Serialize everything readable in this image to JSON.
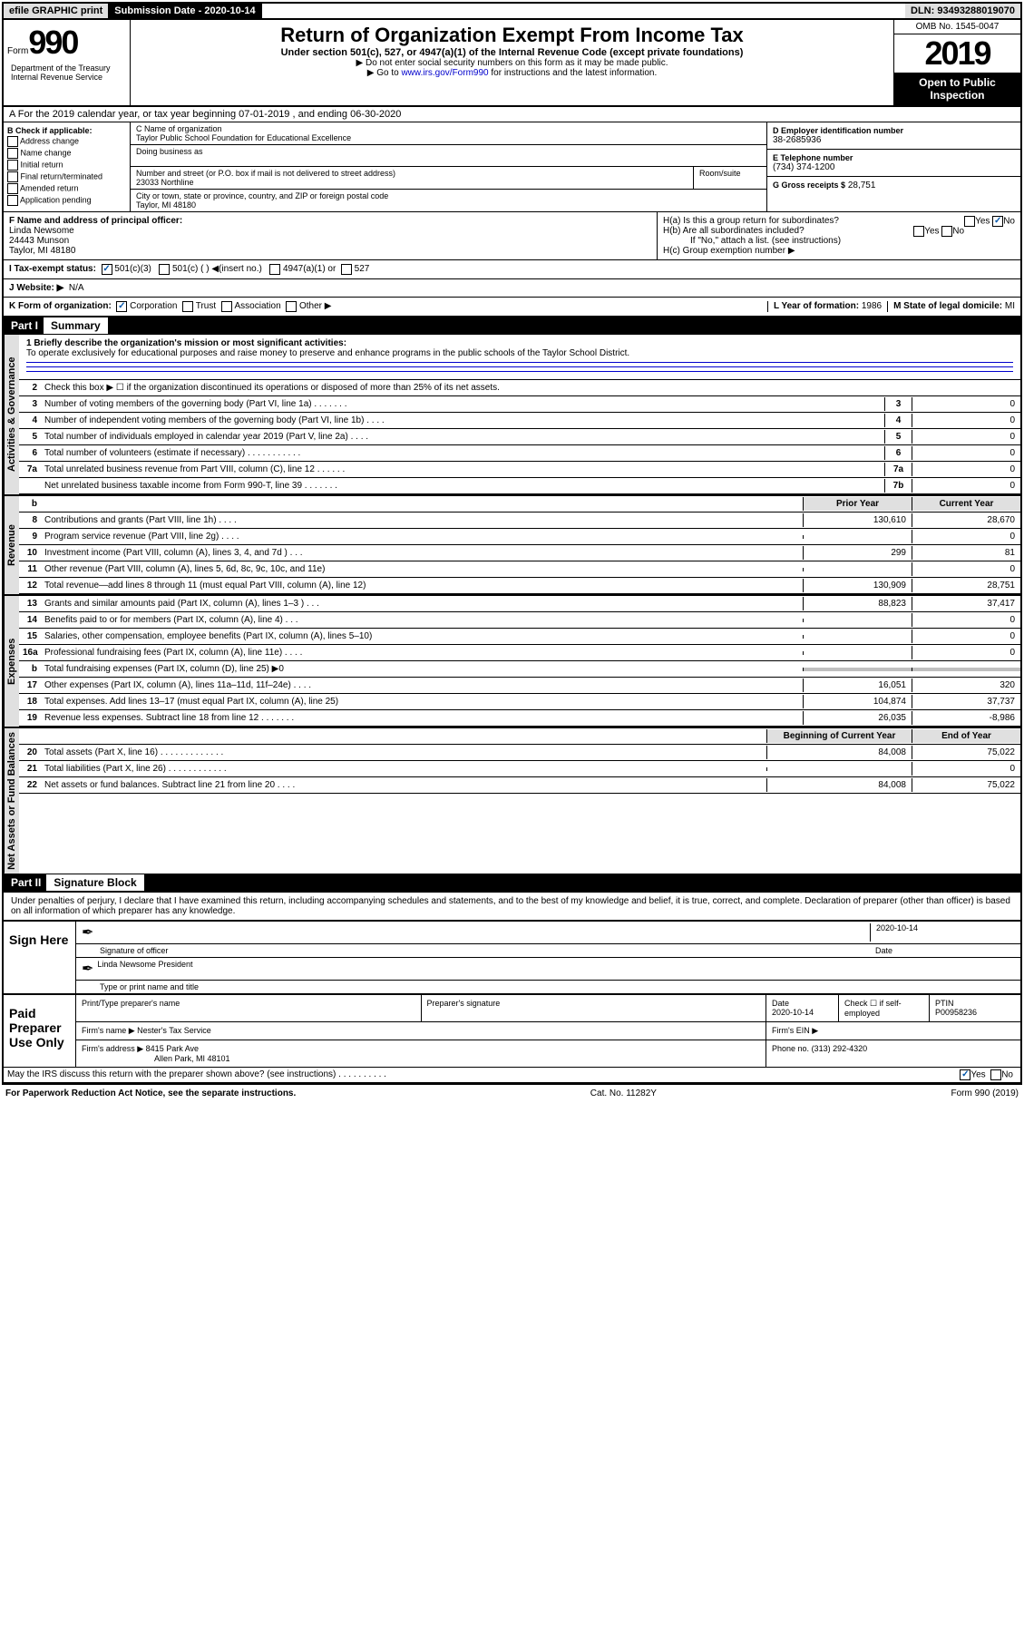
{
  "top_bar": {
    "efile": "efile GRAPHIC print",
    "sub_label": "Submission Date",
    "sub_date": "2020-10-14",
    "dln": "DLN: 93493288019070"
  },
  "header": {
    "form_word": "Form",
    "form_num": "990",
    "title": "Return of Organization Exempt From Income Tax",
    "subtitle": "Under section 501(c), 527, or 4947(a)(1) of the Internal Revenue Code (except private foundations)",
    "note1": "▶ Do not enter social security numbers on this form as it may be made public.",
    "note2_pre": "▶ Go to ",
    "note2_link": "www.irs.gov/Form990",
    "note2_post": " for instructions and the latest information.",
    "omb": "OMB No. 1545-0047",
    "year": "2019",
    "open_public": "Open to Public Inspection",
    "dept": "Department of the Treasury Internal Revenue Service"
  },
  "section_a": "A For the 2019 calendar year, or tax year beginning 07-01-2019    , and ending 06-30-2020",
  "section_b": {
    "label": "B Check if applicable:",
    "items": [
      "Address change",
      "Name change",
      "Initial return",
      "Final return/terminated",
      "Amended return",
      "Application pending"
    ]
  },
  "section_c": {
    "label": "C Name of organization",
    "name": "Taylor Public School Foundation for Educational Excellence",
    "dba_label": "Doing business as",
    "addr_label": "Number and street (or P.O. box if mail is not delivered to street address)",
    "room_label": "Room/suite",
    "addr": "23033 Northline",
    "city_label": "City or town, state or province, country, and ZIP or foreign postal code",
    "city": "Taylor, MI  48180"
  },
  "section_d": {
    "label": "D Employer identification number",
    "value": "38-2685936"
  },
  "section_e": {
    "label": "E Telephone number",
    "value": "(734) 374-1200"
  },
  "section_g": {
    "label": "G Gross receipts $",
    "value": "28,751"
  },
  "section_f": {
    "label": "F  Name and address of principal officer:",
    "name": "Linda Newsome",
    "addr": "24443 Munson",
    "city": "Taylor, MI  48180"
  },
  "section_h": {
    "a_label": "H(a)  Is this a group return for subordinates?",
    "b_label": "H(b)  Are all subordinates included?",
    "b_note": "If \"No,\" attach a list. (see instructions)",
    "c_label": "H(c)  Group exemption number ▶",
    "yes": "Yes",
    "no": "No"
  },
  "section_i": {
    "label": "I  Tax-exempt status:",
    "opts": [
      "501(c)(3)",
      "501(c) (  ) ◀(insert no.)",
      "4947(a)(1) or",
      "527"
    ]
  },
  "section_j": {
    "label": "J  Website: ▶",
    "value": "N/A"
  },
  "section_k": {
    "label": "K Form of organization:",
    "opts": [
      "Corporation",
      "Trust",
      "Association",
      "Other ▶"
    ]
  },
  "section_l": {
    "label": "L Year of formation:",
    "value": "1986"
  },
  "section_m": {
    "label": "M State of legal domicile:",
    "value": "MI"
  },
  "part1": {
    "header": "Part I",
    "title": "Summary",
    "mission_label": "1  Briefly describe the organization's mission or most significant activities:",
    "mission": "To operate exclusively for educational purposes and raise money to preserve and enhance programs in the public schools of the Taylor School District.",
    "line2": "Check this box ▶ ☐ if the organization discontinued its operations or disposed of more than 25% of its net assets.",
    "prior_year": "Prior Year",
    "current_year": "Current Year",
    "beg_year": "Beginning of Current Year",
    "end_year": "End of Year"
  },
  "lines_gov": [
    {
      "num": "3",
      "desc": "Number of voting members of the governing body (Part VI, line 1a)  .    .    .    .    .    .    .",
      "box": "3",
      "val": "0"
    },
    {
      "num": "4",
      "desc": "Number of independent voting members of the governing body (Part VI, line 1b)  .    .    .    .",
      "box": "4",
      "val": "0"
    },
    {
      "num": "5",
      "desc": "Total number of individuals employed in calendar year 2019 (Part V, line 2a)  .    .    .    .",
      "box": "5",
      "val": "0"
    },
    {
      "num": "6",
      "desc": "Total number of volunteers (estimate if necessary)   .    .    .    .    .    .    .    .    .    .    .",
      "box": "6",
      "val": "0"
    },
    {
      "num": "7a",
      "desc": "Total unrelated business revenue from Part VIII, column (C), line 12   .    .    .    .    .    .",
      "box": "7a",
      "val": "0"
    },
    {
      "num": "",
      "desc": "Net unrelated business taxable income from Form 990-T, line 39   .    .    .    .    .    .    .",
      "box": "7b",
      "val": "0"
    }
  ],
  "lines_rev": [
    {
      "num": "8",
      "desc": "Contributions and grants (Part VIII, line 1h)   .    .    .    .",
      "p": "130,610",
      "c": "28,670"
    },
    {
      "num": "9",
      "desc": "Program service revenue (Part VIII, line 2g)  .    .    .    .",
      "p": "",
      "c": "0"
    },
    {
      "num": "10",
      "desc": "Investment income (Part VIII, column (A), lines 3, 4, and 7d )    .    .    .",
      "p": "299",
      "c": "81"
    },
    {
      "num": "11",
      "desc": "Other revenue (Part VIII, column (A), lines 5, 6d, 8c, 9c, 10c, and 11e)",
      "p": "",
      "c": "0"
    },
    {
      "num": "12",
      "desc": "Total revenue—add lines 8 through 11 (must equal Part VIII, column (A), line 12)",
      "p": "130,909",
      "c": "28,751"
    }
  ],
  "lines_exp": [
    {
      "num": "13",
      "desc": "Grants and similar amounts paid (Part IX, column (A), lines 1–3 )   .    .    .",
      "p": "88,823",
      "c": "37,417"
    },
    {
      "num": "14",
      "desc": "Benefits paid to or for members (Part IX, column (A), line 4)   .    .    .",
      "p": "",
      "c": "0"
    },
    {
      "num": "15",
      "desc": "Salaries, other compensation, employee benefits (Part IX, column (A), lines 5–10)",
      "p": "",
      "c": "0"
    },
    {
      "num": "16a",
      "desc": "Professional fundraising fees (Part IX, column (A), line 11e)   .    .    .    .",
      "p": "",
      "c": "0"
    },
    {
      "num": "b",
      "desc": "Total fundraising expenses (Part IX, column (D), line 25) ▶0",
      "p": "grey",
      "c": "grey"
    },
    {
      "num": "17",
      "desc": "Other expenses (Part IX, column (A), lines 11a–11d, 11f–24e)   .    .    .    .",
      "p": "16,051",
      "c": "320"
    },
    {
      "num": "18",
      "desc": "Total expenses. Add lines 13–17 (must equal Part IX, column (A), line 25)",
      "p": "104,874",
      "c": "37,737"
    },
    {
      "num": "19",
      "desc": "Revenue less expenses. Subtract line 18 from line 12 .    .    .    .    .    .    .",
      "p": "26,035",
      "c": "-8,986"
    }
  ],
  "lines_net": [
    {
      "num": "20",
      "desc": "Total assets (Part X, line 16)  .    .    .    .    .    .    .    .    .    .    .    .    .",
      "p": "84,008",
      "c": "75,022"
    },
    {
      "num": "21",
      "desc": "Total liabilities (Part X, line 26)  .    .    .    .    .    .    .    .    .    .    .    .",
      "p": "",
      "c": "0"
    },
    {
      "num": "22",
      "desc": "Net assets or fund balances. Subtract line 21 from line 20   .    .    .    .",
      "p": "84,008",
      "c": "75,022"
    }
  ],
  "part2": {
    "header": "Part II",
    "title": "Signature Block",
    "declare": "Under penalties of perjury, I declare that I have examined this return, including accompanying schedules and statements, and to the best of my knowledge and belief, it is true, correct, and complete. Declaration of preparer (other than officer) is based on all information of which preparer has any knowledge."
  },
  "sign": {
    "here": "Sign Here",
    "sig_label": "Signature of officer",
    "date": "2020-10-14",
    "date_label": "Date",
    "name": "Linda Newsome President",
    "name_label": "Type or print name and title"
  },
  "paid": {
    "label": "Paid Preparer Use Only",
    "prep_name_label": "Print/Type preparer's name",
    "prep_sig_label": "Preparer's signature",
    "date_label": "Date",
    "date": "2020-10-14",
    "check_label": "Check ☐ if self-employed",
    "ptin_label": "PTIN",
    "ptin": "P00958236",
    "firm_name_label": "Firm's name    ▶",
    "firm_name": "Nester's Tax Service",
    "firm_ein_label": "Firm's EIN ▶",
    "firm_addr_label": "Firm's address ▶",
    "firm_addr1": "8415 Park Ave",
    "firm_addr2": "Allen Park, MI  48101",
    "phone_label": "Phone no.",
    "phone": "(313) 292-4320"
  },
  "footer": {
    "discuss": "May the IRS discuss this return with the preparer shown above? (see instructions)   .    .    .    .    .    .    .    .    .    .",
    "paperwork": "For Paperwork Reduction Act Notice, see the separate instructions.",
    "cat": "Cat. No. 11282Y",
    "form": "Form 990 (2019)",
    "yes": "Yes",
    "no": "No"
  },
  "labels": {
    "vert_gov": "Activities & Governance",
    "vert_rev": "Revenue",
    "vert_exp": "Expenses",
    "vert_net": "Net Assets or Fund Balances",
    "b_hdr": "b"
  }
}
